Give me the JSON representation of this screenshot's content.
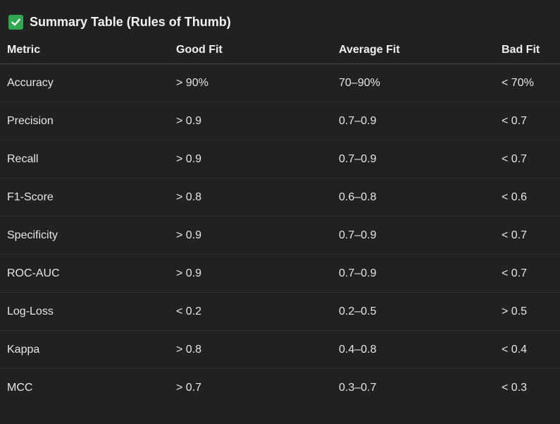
{
  "heading": {
    "icon": "check-mark-icon",
    "icon_color": "#2fa84f",
    "title": "Summary Table (Rules of Thumb)"
  },
  "table": {
    "headers": [
      "Metric",
      "Good Fit",
      "Average Fit",
      "Bad Fit"
    ],
    "rows": [
      [
        "Accuracy",
        "> 90%",
        "70–90%",
        "< 70%"
      ],
      [
        "Precision",
        "> 0.9",
        "0.7–0.9",
        "< 0.7"
      ],
      [
        "Recall",
        "> 0.9",
        "0.7–0.9",
        "< 0.7"
      ],
      [
        "F1-Score",
        "> 0.8",
        "0.6–0.8",
        "< 0.6"
      ],
      [
        "Specificity",
        "> 0.9",
        "0.7–0.9",
        "< 0.7"
      ],
      [
        "ROC-AUC",
        "> 0.9",
        "0.7–0.9",
        "< 0.7"
      ],
      [
        "Log-Loss",
        "< 0.2",
        "0.2–0.5",
        "> 0.5"
      ],
      [
        "Kappa",
        "> 0.8",
        "0.4–0.8",
        "< 0.4"
      ],
      [
        "MCC",
        "> 0.7",
        "0.3–0.7",
        "< 0.3"
      ]
    ]
  },
  "colors": {
    "background": "#212121",
    "text": "#ececec",
    "accent": "#2fa84f"
  }
}
